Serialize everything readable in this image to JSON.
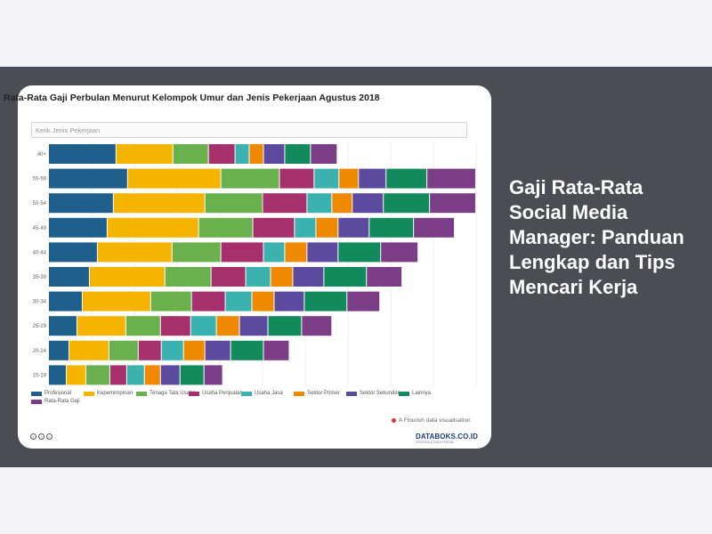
{
  "headline": "Gaji Rata-Rata Social Media Manager: Panduan Lengkap dan Tips Mencari Kerja",
  "search": {
    "placeholder": "Ketik Jenis Pekerjaan"
  },
  "flourish_note": "A Flourish data visualisation",
  "logo": {
    "main": "DATABOKS.CO.ID",
    "sub": "STATISTA & DATA PORTAL"
  },
  "colors": {
    "Profesional": "#1f5f8b",
    "Kepemimpinan": "#f4b400",
    "Tenaga Tata Usaha": "#6ab04c",
    "Usaha Penjualan": "#a5306b",
    "Usaha Jasa": "#3cb2b0",
    "Sektor Primer": "#ef8a00",
    "Sektor Sekunder": "#5c4a9e",
    "Lainnya": "#138a5c",
    "Rata-Rata Gaji": "#7b3d86"
  },
  "chart_data": {
    "type": "bar",
    "orientation": "horizontal",
    "stacked": true,
    "title": "Rata-Rata Gaji Perbulan Menurut Kelompok Umur dan Jenis Pekerjaan Agustus 2018",
    "categories": [
      "40+",
      "55-59",
      "50-54",
      "45-49",
      "40-44",
      "35-39",
      "30-34",
      "25-29",
      "20-24",
      "15-19"
    ],
    "series": [
      {
        "name": "Profesional",
        "values": [
          76,
          89,
          73,
          66,
          55,
          46,
          38,
          32,
          23,
          20
        ]
      },
      {
        "name": "Kepemimpinan",
        "values": [
          64,
          105,
          103,
          103,
          84,
          85,
          77,
          55,
          45,
          22
        ]
      },
      {
        "name": "Tenaga Tata Usaha",
        "values": [
          40,
          66,
          65,
          61,
          55,
          52,
          46,
          39,
          33,
          27
        ]
      },
      {
        "name": "Usaha Penjualan",
        "values": [
          30,
          39,
          50,
          47,
          48,
          39,
          38,
          34,
          26,
          19
        ]
      },
      {
        "name": "Usaha Jasa",
        "values": [
          16,
          28,
          28,
          24,
          24,
          28,
          30,
          29,
          25,
          20
        ]
      },
      {
        "name": "Sektor Primer",
        "values": [
          16,
          22,
          23,
          25,
          25,
          25,
          25,
          26,
          24,
          18
        ]
      },
      {
        "name": "Sektor Sekunder",
        "values": [
          24,
          31,
          35,
          35,
          35,
          35,
          34,
          32,
          29,
          22
        ]
      },
      {
        "name": "Lainnya",
        "values": [
          29,
          46,
          52,
          50,
          48,
          48,
          48,
          38,
          37,
          27
        ]
      },
      {
        "name": "Rata-Rata Gaji",
        "values": [
          30,
          55,
          52,
          46,
          42,
          40,
          37,
          34,
          29,
          21
        ]
      }
    ],
    "grid": true,
    "legend": "bottom"
  }
}
